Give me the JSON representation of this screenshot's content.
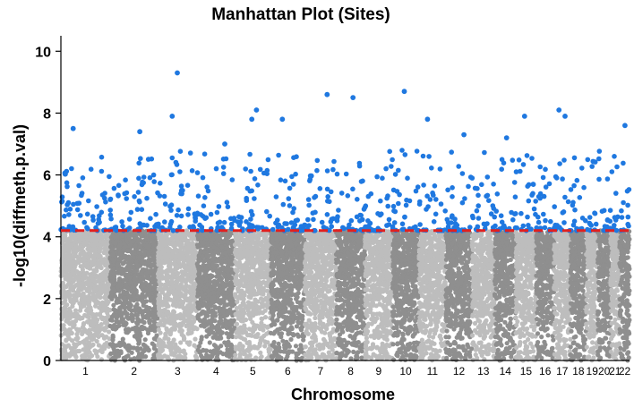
{
  "chart_data": {
    "type": "scatter",
    "title": "Manhattan Plot (Sites)",
    "xlabel": "Chromosome",
    "ylabel": "-log10(diffmeth.p.val)",
    "ylim": [
      0,
      10.5
    ],
    "yticks": [
      "0",
      "2",
      "4",
      "6",
      "8",
      "10"
    ],
    "threshold": 4.2,
    "categories": [
      "1",
      "2",
      "3",
      "4",
      "5",
      "6",
      "7",
      "8",
      "9",
      "10",
      "11",
      "12",
      "13",
      "14",
      "15",
      "16",
      "17",
      "18",
      "19",
      "20",
      "21",
      "22"
    ],
    "grid": false,
    "legend": "none",
    "colors": {
      "significant": "#1f78e0",
      "odd_chromosome": "#bdbdbd",
      "even_chromosome": "#8f8f8f",
      "threshold_line": "#e02020"
    },
    "top_hits": [
      {
        "chromosome": "1",
        "value": 7.5
      },
      {
        "chromosome": "2",
        "value": 7.4
      },
      {
        "chromosome": "3",
        "value": 9.3
      },
      {
        "chromosome": "3",
        "value": 7.9
      },
      {
        "chromosome": "4",
        "value": 7.0
      },
      {
        "chromosome": "5",
        "value": 8.1
      },
      {
        "chromosome": "5",
        "value": 7.8
      },
      {
        "chromosome": "6",
        "value": 7.8
      },
      {
        "chromosome": "7",
        "value": 8.6
      },
      {
        "chromosome": "8",
        "value": 8.5
      },
      {
        "chromosome": "10",
        "value": 8.7
      },
      {
        "chromosome": "11",
        "value": 7.8
      },
      {
        "chromosome": "12",
        "value": 7.3
      },
      {
        "chromosome": "14",
        "value": 7.2
      },
      {
        "chromosome": "15",
        "value": 7.9
      },
      {
        "chromosome": "17",
        "value": 8.1
      },
      {
        "chromosome": "17",
        "value": 7.9
      },
      {
        "chromosome": "22",
        "value": 7.6
      }
    ]
  }
}
